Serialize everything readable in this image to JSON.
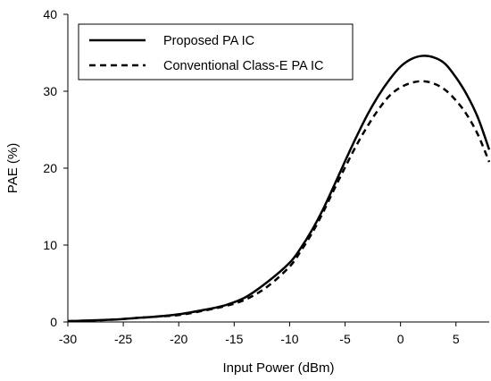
{
  "chart_data": {
    "type": "line",
    "xlabel": "Input Power (dBm)",
    "ylabel": "PAE (%)",
    "xlim": [
      -30,
      8
    ],
    "ylim": [
      0,
      40
    ],
    "xticks": [
      -30,
      -25,
      -20,
      -15,
      -10,
      -5,
      0,
      5
    ],
    "yticks": [
      0,
      10,
      20,
      30,
      40
    ],
    "grid": false,
    "legend_position": "top-left",
    "series": [
      {
        "name": "Proposed PA IC",
        "style": "solid",
        "color": "#000000",
        "x": [
          -30,
          -28,
          -26,
          -24,
          -22,
          -20,
          -18,
          -16,
          -14,
          -12,
          -10,
          -9,
          -8,
          -7,
          -6,
          -5,
          -4,
          -3,
          -2,
          -1,
          0,
          1,
          2,
          3,
          4,
          5,
          6,
          7,
          8
        ],
        "y": [
          0.1,
          0.2,
          0.3,
          0.5,
          0.7,
          1.0,
          1.5,
          2.1,
          3.2,
          5.2,
          7.7,
          9.6,
          11.9,
          14.6,
          17.7,
          20.9,
          24.0,
          26.9,
          29.4,
          31.5,
          33.2,
          34.2,
          34.6,
          34.4,
          33.6,
          31.8,
          29.5,
          26.5,
          22.4
        ]
      },
      {
        "name": "Conventional Class-E PA IC",
        "style": "dashed",
        "color": "#000000",
        "x": [
          -30,
          -28,
          -26,
          -24,
          -22,
          -20,
          -18,
          -16,
          -14,
          -12,
          -10,
          -9,
          -8,
          -7,
          -6,
          -5,
          -4,
          -3,
          -2,
          -1,
          0,
          1,
          2,
          3,
          4,
          5,
          6,
          7,
          8
        ],
        "y": [
          0.1,
          0.2,
          0.3,
          0.5,
          0.7,
          0.9,
          1.4,
          2.0,
          2.9,
          4.6,
          7.2,
          9.2,
          11.5,
          14.2,
          17.2,
          20.1,
          22.9,
          25.4,
          27.6,
          29.4,
          30.5,
          31.1,
          31.3,
          31.0,
          30.2,
          28.8,
          26.9,
          24.3,
          20.8
        ]
      }
    ]
  }
}
